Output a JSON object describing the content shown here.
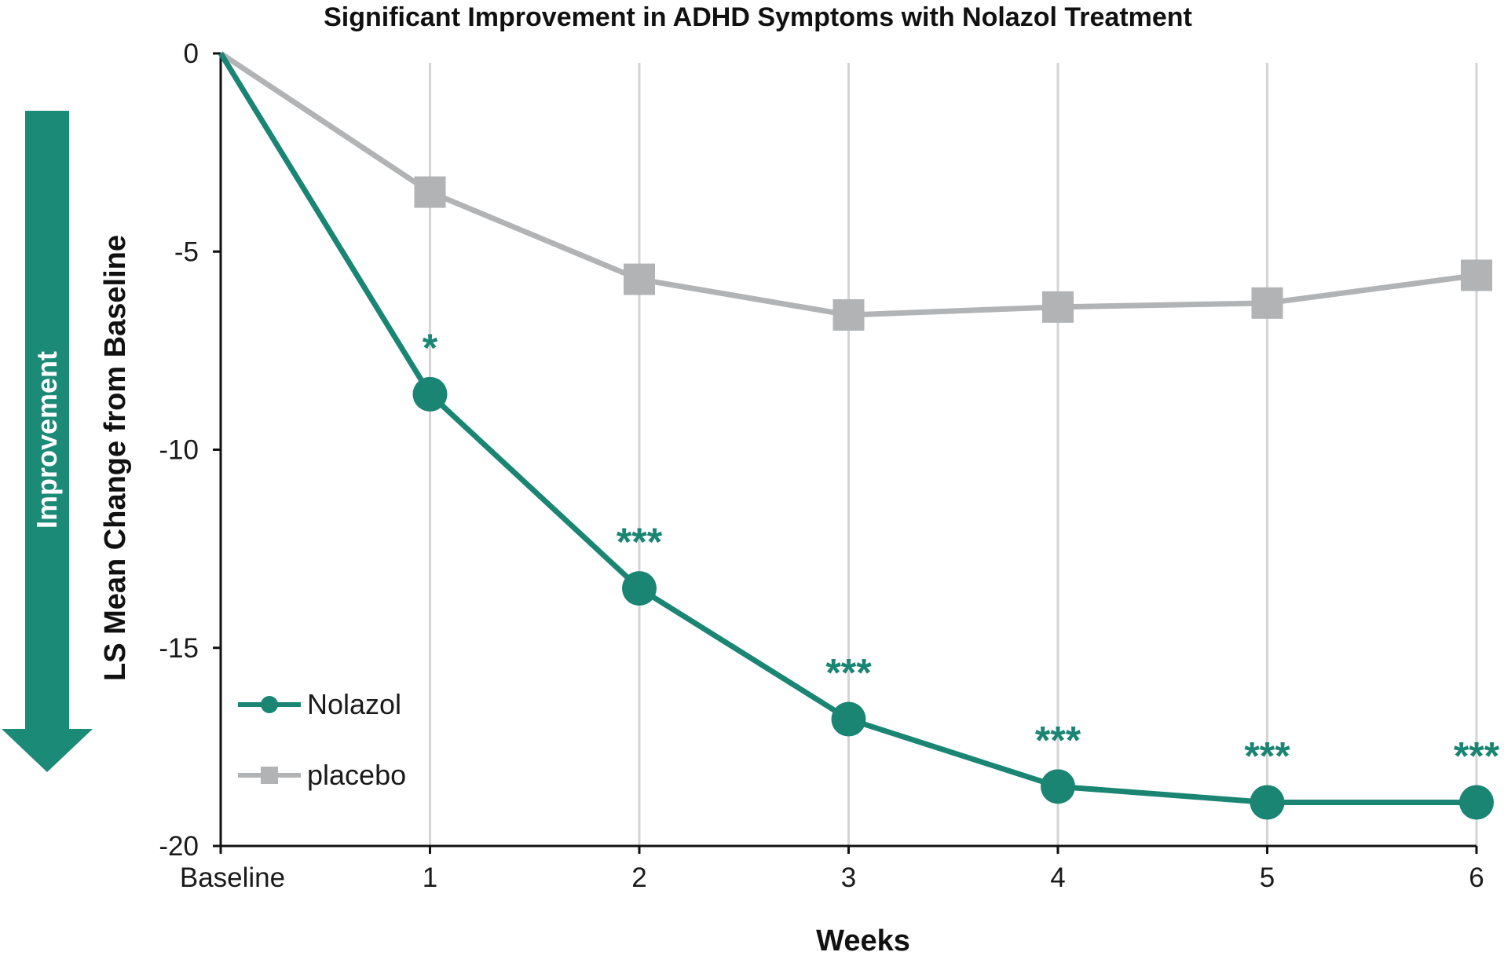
{
  "chart_data": {
    "type": "line",
    "title": "Significant Improvement in ADHD Symptoms with Nolazol Treatment",
    "xlabel": "Weeks",
    "ylabel": "LS Mean Change from Baseline",
    "categories": [
      "Baseline",
      "1",
      "2",
      "3",
      "4",
      "5",
      "6"
    ],
    "ylim": [
      -20,
      0
    ],
    "yticks": [
      0,
      -5,
      -10,
      -15,
      -20
    ],
    "grid": "vertical",
    "legend_position": "bottom-left",
    "improvement_label": "Improvement",
    "series": [
      {
        "name": "Nolazol",
        "marker": "circle",
        "color": "#1a8573",
        "values": [
          0,
          -8.6,
          -13.5,
          -16.8,
          -18.5,
          -18.9,
          -18.9
        ],
        "significance": [
          "",
          "*",
          "***",
          "***",
          "***",
          "***",
          "***"
        ]
      },
      {
        "name": "placebo",
        "marker": "square",
        "color": "#b1b3b5",
        "values": [
          0,
          -3.5,
          -5.7,
          -6.6,
          -6.4,
          -6.3,
          -5.6
        ]
      }
    ]
  }
}
